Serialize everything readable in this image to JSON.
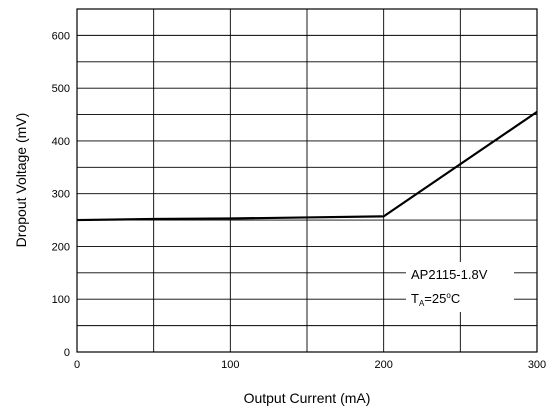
{
  "chart_data": {
    "type": "line",
    "title": "",
    "xlabel": "Output Current (mA)",
    "ylabel": "Dropout Voltage (mV)",
    "xlim": [
      0,
      300
    ],
    "ylim": [
      0,
      650
    ],
    "x_ticks": [
      0,
      100,
      200,
      300
    ],
    "y_ticks": [
      0,
      100,
      200,
      300,
      400,
      500,
      600
    ],
    "grid": true,
    "series": [
      {
        "x": [
          0,
          50,
          100,
          150,
          200,
          300
        ],
        "y": [
          250,
          252,
          253,
          255,
          257,
          455
        ]
      }
    ],
    "annotation": {
      "line1": "AP2115-1.8V",
      "line2_main": "T",
      "line2_sub": "A",
      "line2_rest": "=25",
      "line2_deg": "o",
      "line2_unit": "C"
    }
  }
}
